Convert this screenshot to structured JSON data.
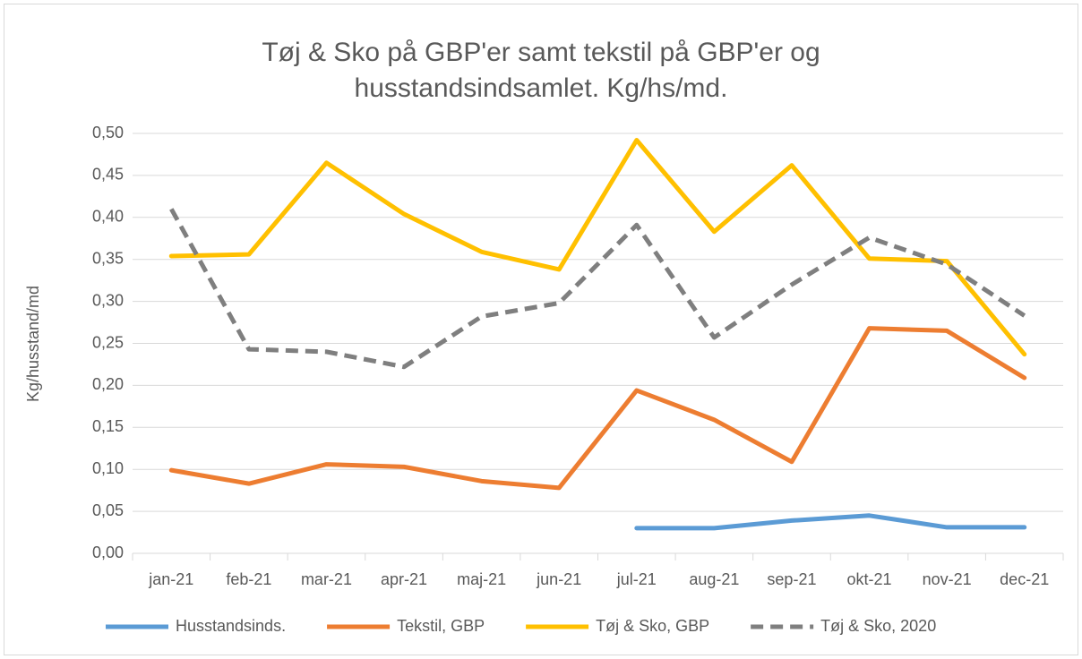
{
  "chart_data": {
    "type": "line",
    "title_lines": [
      "Tøj & Sko på GBP'er samt tekstil på GBP'er og",
      "husstandsindsamlet. Kg/hs/md."
    ],
    "y_label": "Kg/husstand/md",
    "categories": [
      "jan-21",
      "feb-21",
      "mar-21",
      "apr-21",
      "maj-21",
      "jun-21",
      "jul-21",
      "aug-21",
      "sep-21",
      "okt-21",
      "nov-21",
      "dec-21"
    ],
    "series": [
      {
        "name": "Husstandsinds.",
        "color": "#5b9bd5",
        "dashed": false,
        "values": [
          null,
          null,
          null,
          null,
          null,
          null,
          0.03,
          0.03,
          0.039,
          0.045,
          0.031,
          0.031
        ]
      },
      {
        "name": "Tekstil, GBP",
        "color": "#ed7d31",
        "dashed": false,
        "values": [
          0.099,
          0.083,
          0.106,
          0.103,
          0.086,
          0.078,
          0.194,
          0.159,
          0.109,
          0.268,
          0.265,
          0.209
        ]
      },
      {
        "name": "Tøj & Sko, GBP",
        "color": "#ffc000",
        "dashed": false,
        "values": [
          0.354,
          0.356,
          0.465,
          0.404,
          0.359,
          0.338,
          0.492,
          0.383,
          0.462,
          0.351,
          0.348,
          0.237
        ]
      },
      {
        "name": "Tøj & Sko, 2020",
        "color": "#7f7f7f",
        "dashed": true,
        "values": [
          0.41,
          0.243,
          0.24,
          0.222,
          0.282,
          0.298,
          0.391,
          0.257,
          0.32,
          0.376,
          0.344,
          0.283
        ]
      }
    ],
    "ylim": [
      0,
      0.5
    ],
    "yticks": [
      {
        "value": 0,
        "label": "0,00"
      },
      {
        "value": 0.05,
        "label": "0,05"
      },
      {
        "value": 0.1,
        "label": "0,10"
      },
      {
        "value": 0.15,
        "label": "0,15"
      },
      {
        "value": 0.2,
        "label": "0,20"
      },
      {
        "value": 0.25,
        "label": "0,25"
      },
      {
        "value": 0.3,
        "label": "0,30"
      },
      {
        "value": 0.35,
        "label": "0,35"
      },
      {
        "value": 0.4,
        "label": "0,40"
      },
      {
        "value": 0.45,
        "label": "0,45"
      },
      {
        "value": 0.5,
        "label": "0,50"
      }
    ],
    "grid": true,
    "legend": "bottom"
  }
}
